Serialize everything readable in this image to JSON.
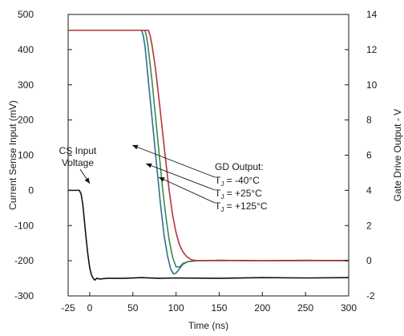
{
  "chart_data": {
    "type": "line",
    "title": "",
    "xlabel": "Time (ns)",
    "ylabel": "Current Sense Input (mV)",
    "y2label": "Gate Drive Output - V",
    "xlim": [
      -25,
      300
    ],
    "ylim": [
      -300,
      500
    ],
    "y2lim": [
      -2,
      14
    ],
    "xticks": [
      -25,
      0,
      50,
      100,
      150,
      200,
      250,
      300
    ],
    "yticks": [
      500,
      400,
      300,
      200,
      100,
      0,
      -100,
      -200,
      -300
    ],
    "y2ticks": [
      14,
      12,
      10,
      8,
      6,
      4,
      2,
      0,
      -2
    ],
    "grid": false,
    "series": [
      {
        "name": "CS Input Voltage",
        "axis": "left",
        "color": "#111111",
        "points": [
          [
            -25,
            0
          ],
          [
            -16,
            0
          ],
          [
            -12,
            0
          ],
          [
            -10,
            -10
          ],
          [
            -8,
            -40
          ],
          [
            -6,
            -90
          ],
          [
            -4,
            -140
          ],
          [
            -2,
            -185
          ],
          [
            0,
            -220
          ],
          [
            2,
            -240
          ],
          [
            4,
            -250
          ],
          [
            6,
            -255
          ],
          [
            8,
            -250
          ],
          [
            12,
            -252
          ],
          [
            20,
            -250
          ],
          [
            40,
            -250
          ],
          [
            60,
            -248
          ],
          [
            80,
            -250
          ],
          [
            100,
            -249
          ],
          [
            150,
            -250
          ],
          [
            200,
            -248
          ],
          [
            250,
            -249
          ],
          [
            300,
            -248
          ]
        ]
      },
      {
        "name": "T_J = -40°C",
        "axis": "right",
        "color": "#2f6f8f",
        "points": [
          [
            -25,
            13.1
          ],
          [
            50,
            13.1
          ],
          [
            60,
            13.1
          ],
          [
            62,
            12.8
          ],
          [
            64,
            12.2
          ],
          [
            66,
            11.2
          ],
          [
            70,
            9.2
          ],
          [
            74,
            7.2
          ],
          [
            78,
            5.2
          ],
          [
            82,
            3.2
          ],
          [
            86,
            1.5
          ],
          [
            90,
            0.3
          ],
          [
            94,
            -0.5
          ],
          [
            97,
            -0.75
          ],
          [
            100,
            -0.7
          ],
          [
            104,
            -0.45
          ],
          [
            108,
            -0.2
          ],
          [
            114,
            -0.05
          ],
          [
            125,
            0
          ],
          [
            150,
            0.02
          ],
          [
            200,
            0
          ],
          [
            250,
            0.02
          ],
          [
            300,
            0
          ]
        ]
      },
      {
        "name": "T_J = +25°C",
        "axis": "right",
        "color": "#3a8a4a",
        "points": [
          [
            -25,
            13.1
          ],
          [
            50,
            13.1
          ],
          [
            64,
            13.1
          ],
          [
            66,
            12.7
          ],
          [
            68,
            12.0
          ],
          [
            72,
            10.3
          ],
          [
            76,
            8.3
          ],
          [
            80,
            6.3
          ],
          [
            84,
            4.3
          ],
          [
            88,
            2.6
          ],
          [
            92,
            1.2
          ],
          [
            96,
            0.2
          ],
          [
            100,
            -0.35
          ],
          [
            104,
            -0.35
          ],
          [
            108,
            -0.15
          ],
          [
            114,
            -0.05
          ],
          [
            125,
            0
          ],
          [
            150,
            0.02
          ],
          [
            200,
            0
          ],
          [
            250,
            0
          ],
          [
            300,
            0.02
          ]
        ]
      },
      {
        "name": "T_J = +125°C",
        "axis": "right",
        "color": "#b8323a",
        "points": [
          [
            -25,
            13.1
          ],
          [
            50,
            13.1
          ],
          [
            68,
            13.1
          ],
          [
            70,
            12.8
          ],
          [
            72,
            12.3
          ],
          [
            76,
            11.0
          ],
          [
            80,
            9.3
          ],
          [
            84,
            7.5
          ],
          [
            88,
            5.7
          ],
          [
            92,
            4.0
          ],
          [
            96,
            2.6
          ],
          [
            100,
            1.6
          ],
          [
            104,
            0.9
          ],
          [
            108,
            0.5
          ],
          [
            112,
            0.25
          ],
          [
            118,
            0.05
          ],
          [
            125,
            0
          ],
          [
            150,
            0.02
          ],
          [
            200,
            0
          ],
          [
            250,
            0.02
          ],
          [
            300,
            0
          ]
        ]
      }
    ],
    "annotations": {
      "cs_line1": "CS Input",
      "cs_line2": "Voltage",
      "gd_header": "GD Output:",
      "gd_items": [
        {
          "prefix": "T",
          "sub": "J",
          "suffix": " = -40°C"
        },
        {
          "prefix": "T",
          "sub": "J",
          "suffix": " = +25°C"
        },
        {
          "prefix": "T",
          "sub": "J",
          "suffix": " = +125°C"
        }
      ]
    }
  }
}
